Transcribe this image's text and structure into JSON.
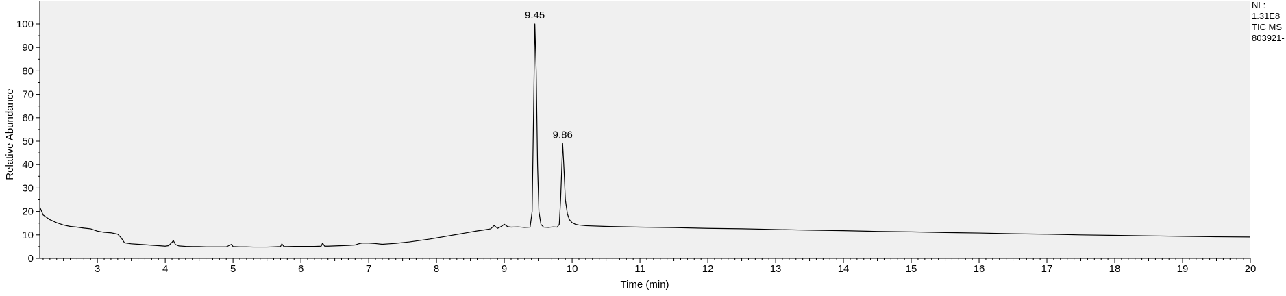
{
  "side_info": {
    "nl_label": "NL:",
    "nl_value": "1.31E8",
    "scan_filter": "TIC  MS",
    "file_name": "803921-"
  },
  "chart_data": {
    "type": "line",
    "title": "",
    "xlabel": "Time (min)",
    "ylabel": "Relative Abundance",
    "xlim": [
      2.15,
      20
    ],
    "ylim": [
      0,
      105
    ],
    "x_ticks": [
      3,
      4,
      5,
      6,
      7,
      8,
      9,
      10,
      11,
      12,
      13,
      14,
      15,
      16,
      17,
      18,
      19,
      20
    ],
    "y_ticks": [
      0,
      10,
      20,
      30,
      40,
      50,
      60,
      70,
      80,
      90,
      100
    ],
    "grid": false,
    "background": "#f0f0f0",
    "line_color": "#000000",
    "peak_labels": [
      {
        "x": 9.45,
        "y": 100,
        "text": "9.45"
      },
      {
        "x": 9.86,
        "y": 49,
        "text": "9.86"
      }
    ],
    "series": [
      {
        "x": [
          2.15,
          2.2,
          2.3,
          2.4,
          2.5,
          2.6,
          2.7,
          2.8,
          2.9,
          3.0,
          3.1,
          3.2,
          3.3,
          3.35,
          3.4,
          3.5,
          3.6,
          3.7,
          3.8,
          3.9,
          4.0,
          4.05,
          4.1,
          4.12,
          4.15,
          4.2,
          4.3,
          4.4,
          4.5,
          4.6,
          4.7,
          4.8,
          4.9,
          4.98,
          5.0,
          5.1,
          5.2,
          5.3,
          5.4,
          5.5,
          5.6,
          5.7,
          5.72,
          5.75,
          5.8,
          5.9,
          6.0,
          6.1,
          6.2,
          6.3,
          6.32,
          6.35,
          6.4,
          6.5,
          6.6,
          6.7,
          6.8,
          6.85,
          6.9,
          7.0,
          7.1,
          7.2,
          7.3,
          7.4,
          7.5,
          7.6,
          7.7,
          7.8,
          7.9,
          8.0,
          8.1,
          8.2,
          8.3,
          8.4,
          8.5,
          8.6,
          8.7,
          8.8,
          8.85,
          8.9,
          8.95,
          9.0,
          9.05,
          9.1,
          9.2,
          9.3,
          9.38,
          9.41,
          9.43,
          9.45,
          9.47,
          9.49,
          9.51,
          9.54,
          9.58,
          9.65,
          9.72,
          9.78,
          9.81,
          9.83,
          9.86,
          9.88,
          9.9,
          9.93,
          9.96,
          10.0,
          10.05,
          10.1,
          10.2,
          10.5,
          11.0,
          11.5,
          12.0,
          12.5,
          13.0,
          13.5,
          14.0,
          14.5,
          15.0,
          15.5,
          16.0,
          16.5,
          17.0,
          17.5,
          18.0,
          18.5,
          19.0,
          19.5,
          20.0
        ],
        "y": [
          22,
          18.5,
          16.5,
          15.2,
          14.2,
          13.6,
          13.3,
          12.9,
          12.6,
          11.6,
          11.1,
          10.9,
          10.3,
          8.8,
          6.6,
          6.2,
          6.0,
          5.8,
          5.6,
          5.4,
          5.2,
          5.4,
          6.8,
          7.6,
          5.9,
          5.3,
          5.1,
          5.0,
          5.0,
          4.9,
          4.9,
          4.9,
          4.9,
          6.0,
          5.0,
          4.9,
          4.9,
          4.8,
          4.8,
          4.8,
          4.9,
          5.0,
          6.2,
          5.0,
          5.0,
          5.1,
          5.1,
          5.1,
          5.1,
          5.2,
          6.5,
          5.2,
          5.2,
          5.3,
          5.4,
          5.5,
          5.7,
          6.2,
          6.5,
          6.5,
          6.3,
          6.0,
          6.2,
          6.4,
          6.7,
          7.0,
          7.4,
          7.8,
          8.2,
          8.7,
          9.2,
          9.7,
          10.2,
          10.7,
          11.2,
          11.7,
          12.1,
          12.6,
          14.0,
          12.8,
          13.5,
          14.5,
          13.5,
          13.3,
          13.4,
          13.2,
          13.3,
          20,
          60,
          100,
          80,
          40,
          20,
          14.5,
          13.3,
          13.2,
          13.4,
          13.3,
          14.5,
          25,
          49,
          38,
          25,
          19,
          16.5,
          15.2,
          14.5,
          14.2,
          13.9,
          13.6,
          13.3,
          13.1,
          12.8,
          12.6,
          12.3,
          12.0,
          11.8,
          11.5,
          11.3,
          11.0,
          10.8,
          10.5,
          10.3,
          10.0,
          9.8,
          9.6,
          9.4,
          9.2,
          9.1
        ]
      }
    ]
  }
}
